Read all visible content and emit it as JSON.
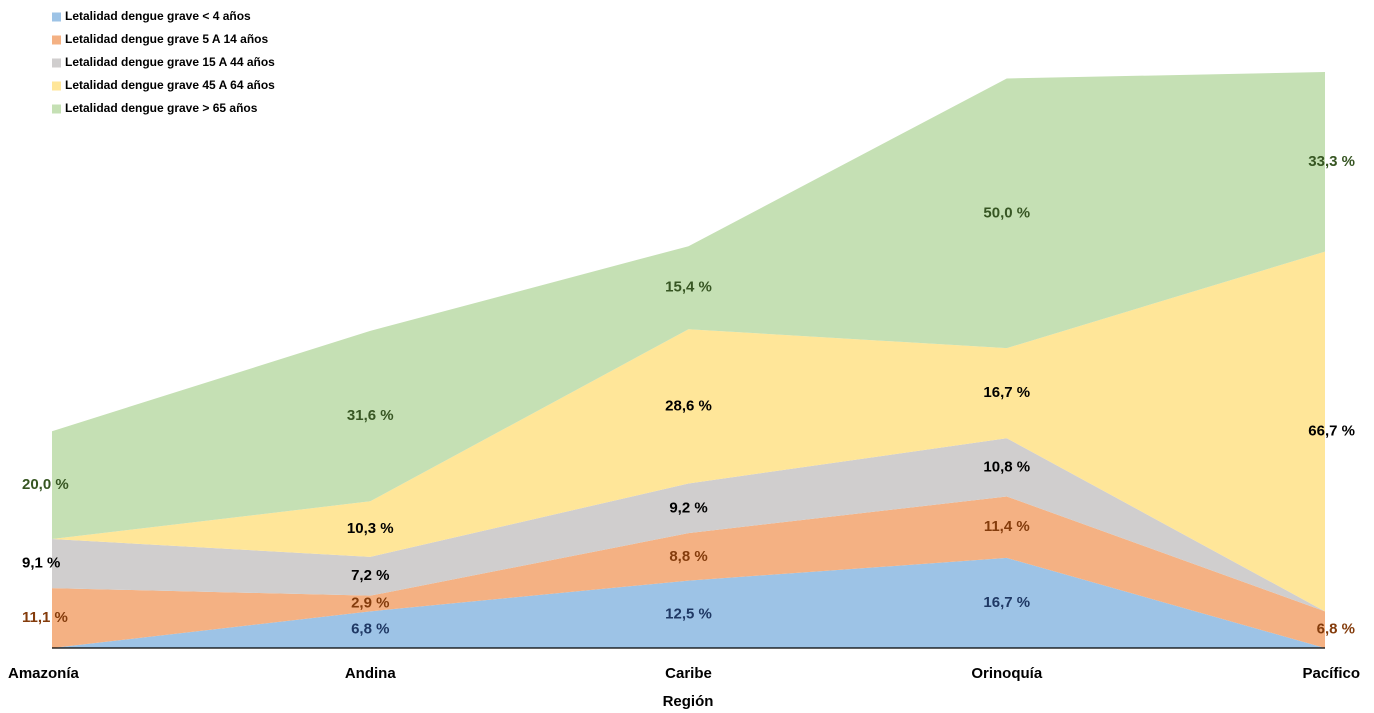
{
  "chart_data": {
    "type": "stacked-area",
    "x_label": "Región",
    "categories": [
      "Amazonía",
      "Andina",
      "Caribe",
      "Orinoquía",
      "Pacífico"
    ],
    "series": [
      {
        "name": "Letalidad dengue grave < 4 años",
        "color": "#9dc3e6",
        "label_color": "#1f3864",
        "values": [
          0,
          6.8,
          12.5,
          16.7,
          0
        ],
        "value_labels": [
          null,
          "6,8 %",
          "12,5 %",
          "16,7 %",
          null
        ]
      },
      {
        "name": "Letalidad dengue grave 5 A 14 años",
        "color": "#f4b183",
        "label_color": "#843c0c",
        "values": [
          11.1,
          2.9,
          8.8,
          11.4,
          6.8
        ],
        "value_labels": [
          "11,1 %",
          "2,9 %",
          "8,8 %",
          "11,4 %",
          "6,8 %"
        ]
      },
      {
        "name": "Letalidad dengue grave 15 A 44 años",
        "color": "#d0cece",
        "label_color": "#000000",
        "values": [
          9.1,
          7.2,
          9.2,
          10.8,
          0
        ],
        "value_labels": [
          "9,1 %",
          "7,2 %",
          "9,2 %",
          "10,8 %",
          null
        ]
      },
      {
        "name": "Letalidad dengue grave 45 A 64 años",
        "color": "#ffe699",
        "label_color": "#000000",
        "values": [
          0,
          10.3,
          28.6,
          16.7,
          66.7
        ],
        "value_labels": [
          null,
          "10,3 %",
          "28,6 %",
          "16,7 %",
          "66,7 %"
        ]
      },
      {
        "name": "Letalidad dengue grave > 65 años",
        "color": "#c5e0b4",
        "label_color": "#375623",
        "values": [
          20.0,
          31.6,
          15.4,
          50.0,
          33.3
        ],
        "value_labels": [
          "20,0 %",
          "31,6 %",
          "15,4 %",
          "50,0 %",
          "33,3 %"
        ]
      }
    ]
  }
}
